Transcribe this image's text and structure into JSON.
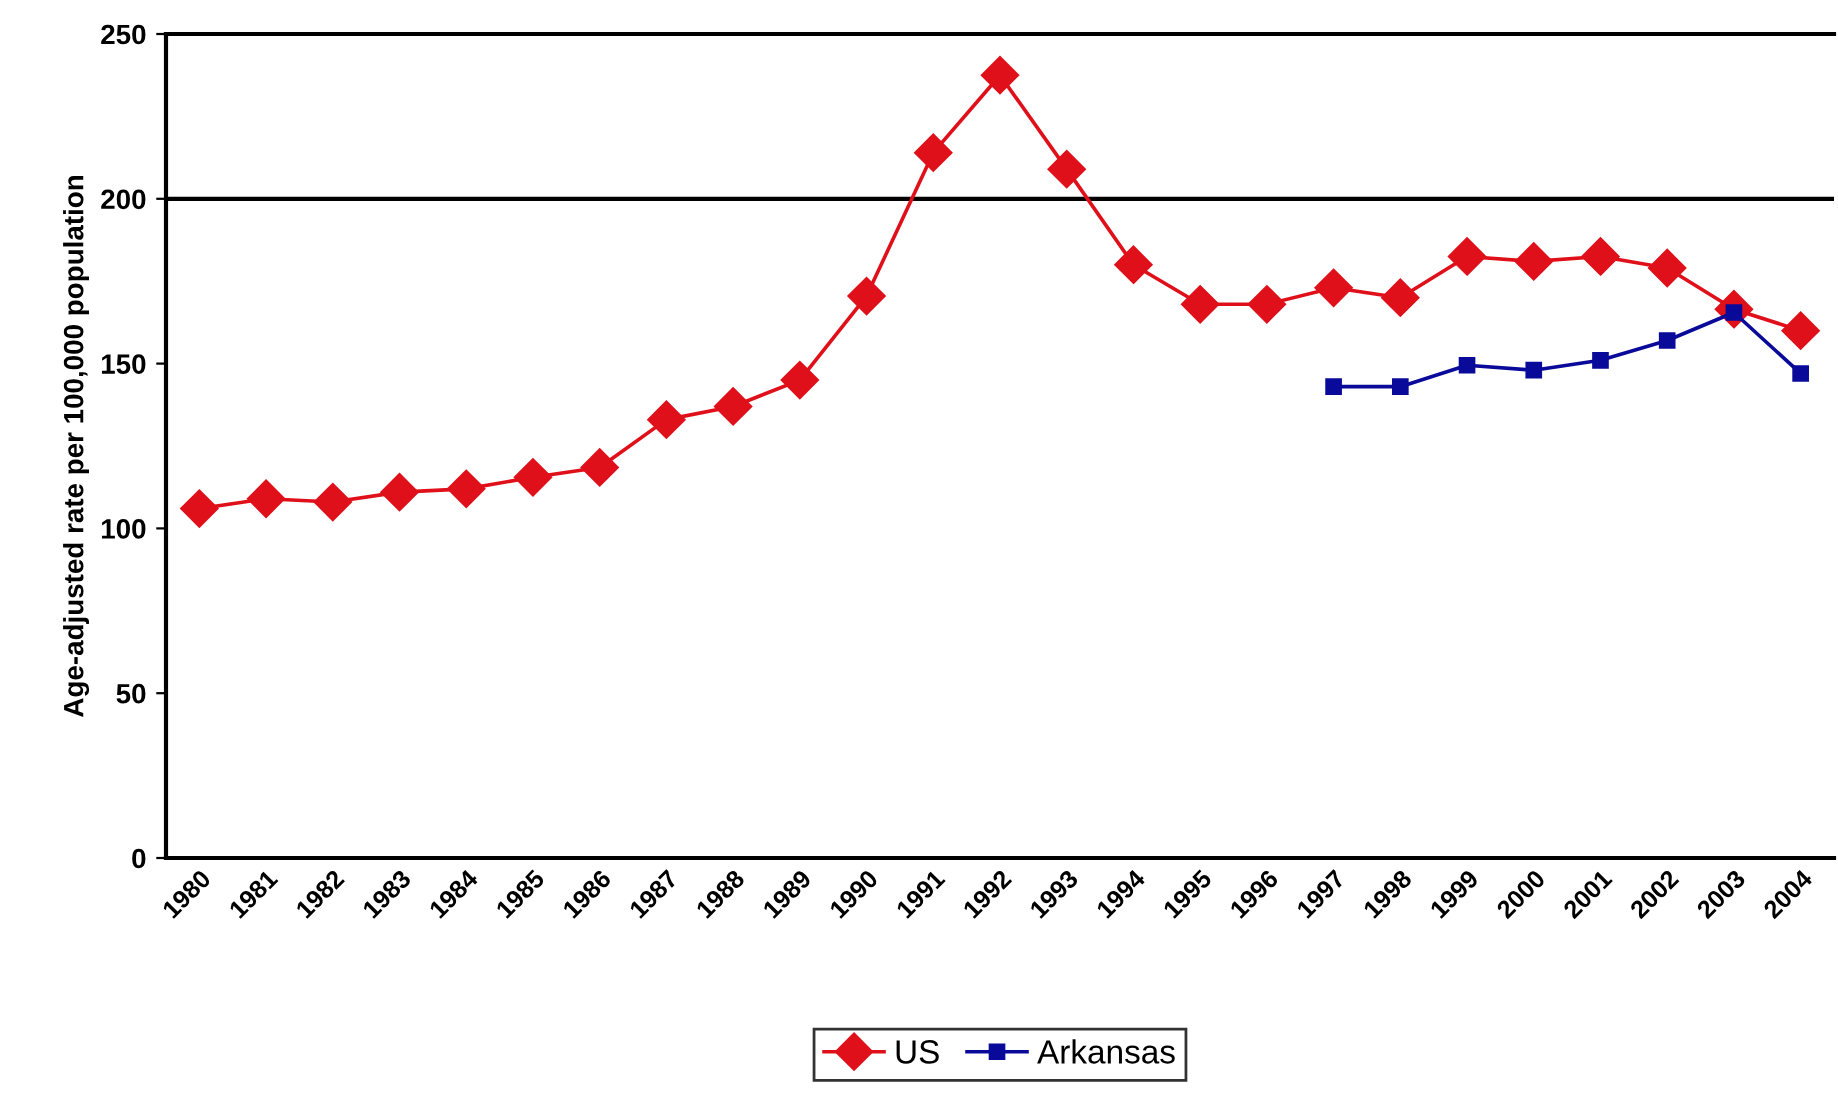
{
  "chart_data": {
    "type": "line",
    "ylabel": "Age-adjusted rate per 100,000 population",
    "categories": [
      "1980",
      "1981",
      "1982",
      "1983",
      "1984",
      "1985",
      "1986",
      "1987",
      "1988",
      "1989",
      "1990",
      "1991",
      "1992",
      "1993",
      "1994",
      "1995",
      "1996",
      "1997",
      "1998",
      "1999",
      "2000",
      "2001",
      "2002",
      "2003",
      "2004"
    ],
    "series": [
      {
        "name": "US",
        "color": "#e0101a",
        "marker": "diamond",
        "values": [
          106,
          109,
          108,
          111,
          112,
          115.5,
          118.5,
          133,
          137,
          145,
          170.5,
          214,
          237.5,
          209,
          180,
          168,
          168,
          173,
          170,
          182.5,
          181,
          182.5,
          179,
          166.5,
          160
        ]
      },
      {
        "name": "Arkansas",
        "color": "#0a0a9a",
        "marker": "square",
        "values": [
          null,
          null,
          null,
          null,
          null,
          null,
          null,
          null,
          null,
          null,
          null,
          null,
          null,
          null,
          null,
          null,
          null,
          143,
          143,
          149.5,
          148,
          151,
          157,
          165.5,
          147
        ]
      }
    ],
    "ylim": [
      0,
      250
    ],
    "yticks": [
      0,
      50,
      100,
      150,
      200,
      250
    ],
    "ref_lines": [
      {
        "axis": "y",
        "value": 200,
        "color": "#000000"
      }
    ],
    "legend": "bottom",
    "line_style": "solid"
  }
}
